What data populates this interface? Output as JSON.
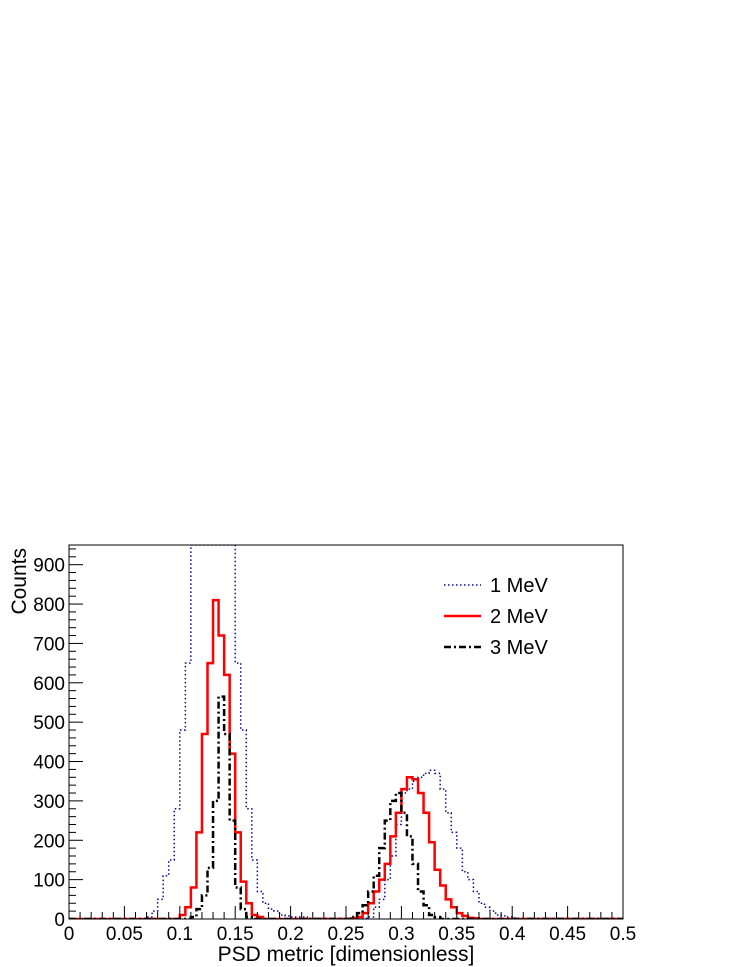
{
  "chart_data": {
    "type": "histogram",
    "xlabel": "PSD metric [dimensionless]",
    "ylabel": "Counts",
    "xlim": [
      0,
      0.5
    ],
    "ylim": [
      0,
      950
    ],
    "x_ticks": [
      0,
      0.05,
      0.1,
      0.15,
      0.2,
      0.25,
      0.3,
      0.35,
      0.4,
      0.45,
      0.5
    ],
    "x_tick_labels": [
      "0",
      "0.05",
      "0.1",
      "0.15",
      "0.2",
      "0.25",
      "0.3",
      "0.35",
      "0.4",
      "0.45",
      "0.5"
    ],
    "y_ticks": [
      0,
      100,
      200,
      300,
      400,
      500,
      600,
      700,
      800,
      900
    ],
    "y_tick_labels": [
      "0",
      "100",
      "200",
      "300",
      "400",
      "500",
      "600",
      "700",
      "800",
      "900"
    ],
    "bin_width": 0.005,
    "legend_position": "top-right",
    "grid": false,
    "series": [
      {
        "name": "1 MeV",
        "color": "#0a0a8a",
        "style": "dotted",
        "values": [
          0,
          0,
          0,
          0,
          0,
          0,
          0,
          0,
          0,
          0,
          0,
          0,
          0,
          0,
          5,
          20,
          50,
          110,
          150,
          280,
          480,
          650,
          950,
          950,
          950,
          950,
          950,
          950,
          950,
          950,
          650,
          480,
          280,
          150,
          70,
          40,
          25,
          20,
          10,
          8,
          5,
          5,
          5,
          2,
          2,
          2,
          2,
          2,
          2,
          2,
          2,
          2,
          2,
          2,
          5,
          30,
          50,
          100,
          160,
          240,
          320,
          330,
          350,
          360,
          370,
          378,
          370,
          330,
          270,
          220,
          180,
          120,
          100,
          70,
          40,
          30,
          20,
          10,
          8,
          5,
          3,
          2,
          2,
          2,
          2,
          2,
          2,
          2,
          2,
          2,
          2,
          2,
          2,
          2,
          2,
          2,
          2,
          2,
          2,
          2
        ]
      },
      {
        "name": "2 MeV",
        "color": "#ff0000",
        "style": "solid",
        "values": [
          0,
          0,
          0,
          0,
          0,
          0,
          0,
          0,
          0,
          0,
          0,
          0,
          0,
          0,
          0,
          0,
          0,
          0,
          0,
          0,
          10,
          30,
          80,
          220,
          470,
          650,
          810,
          720,
          620,
          420,
          220,
          95,
          40,
          10,
          5,
          0,
          0,
          0,
          0,
          0,
          0,
          0,
          0,
          0,
          0,
          0,
          0,
          0,
          0,
          0,
          0,
          2,
          5,
          15,
          40,
          70,
          100,
          140,
          210,
          270,
          330,
          360,
          355,
          320,
          270,
          195,
          125,
          85,
          50,
          30,
          15,
          8,
          3,
          2,
          0,
          0,
          0,
          0,
          0,
          0,
          0,
          0,
          0,
          0,
          0,
          0,
          0,
          0,
          0,
          0,
          0,
          0,
          0,
          0,
          0,
          0,
          0,
          0,
          0,
          0
        ]
      },
      {
        "name": "3 MeV",
        "color": "#000000",
        "style": "dashdot",
        "values": [
          0,
          0,
          0,
          0,
          0,
          0,
          0,
          0,
          0,
          0,
          0,
          0,
          0,
          0,
          0,
          0,
          0,
          0,
          0,
          0,
          0,
          0,
          5,
          25,
          60,
          130,
          300,
          565,
          470,
          250,
          80,
          25,
          5,
          0,
          0,
          0,
          0,
          0,
          0,
          0,
          0,
          0,
          0,
          0,
          0,
          0,
          0,
          0,
          0,
          0,
          0,
          5,
          15,
          35,
          70,
          110,
          180,
          250,
          300,
          320,
          270,
          210,
          140,
          70,
          35,
          10,
          5,
          0,
          0,
          0,
          0,
          0,
          0,
          0,
          0,
          0,
          0,
          0,
          0,
          0,
          0,
          0,
          0,
          0,
          0,
          0,
          0,
          0,
          0,
          0,
          0,
          0,
          0,
          0,
          0,
          0,
          0,
          0,
          0,
          0
        ]
      }
    ]
  }
}
